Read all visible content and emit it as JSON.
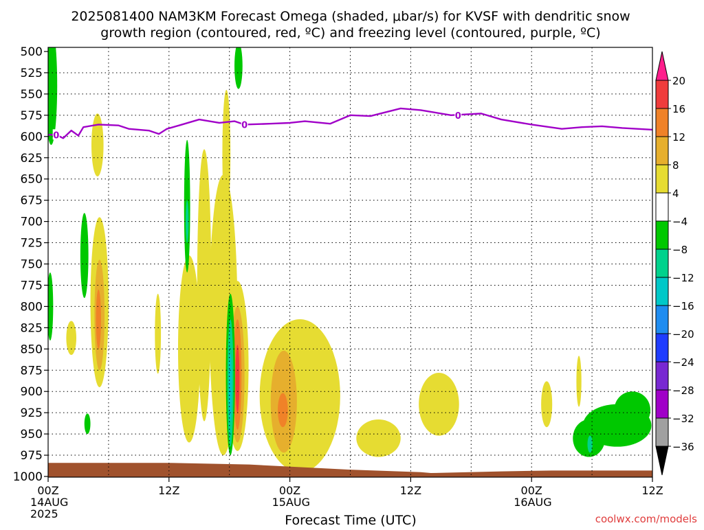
{
  "title": {
    "line1": "2025081400 NAM3KM Forecast Omega (shaded, μbar/s) for KVSF with dendritic snow",
    "line2": "growth region (contoured, red, ºC) and freezing level (contoured, purple, ºC)"
  },
  "credit": "coolwx.com/models",
  "chart_data": {
    "type": "heatmap",
    "title": "2025081400 NAM3KM Forecast Omega (shaded, μbar/s) for KVSF with dendritic snow growth region (contoured, red, ºC) and freezing level (contoured, purple, ºC)",
    "xlabel": "Forecast Time (UTC)",
    "ylabel": "",
    "x_unit": "forecast hour",
    "xlim": [
      0,
      60
    ],
    "ylim": [
      1000,
      500
    ],
    "x_ticks": [
      {
        "hour": 0,
        "line1": "00Z",
        "line2": "14AUG",
        "line3": "2025"
      },
      {
        "hour": 12,
        "line1": "12Z"
      },
      {
        "hour": 24,
        "line1": "00Z",
        "line2": "15AUG"
      },
      {
        "hour": 36,
        "line1": "12Z"
      },
      {
        "hour": 48,
        "line1": "00Z",
        "line2": "16AUG"
      },
      {
        "hour": 60,
        "line1": "12Z"
      }
    ],
    "y_ticks": [
      "500",
      "525",
      "550",
      "575",
      "600",
      "625",
      "650",
      "675",
      "700",
      "725",
      "750",
      "775",
      "800",
      "825",
      "850",
      "875",
      "900",
      "925",
      "950",
      "975",
      "1000"
    ],
    "grid": true,
    "colorbar": {
      "labels": [
        "20",
        "16",
        "12",
        "8",
        "4",
        "−4",
        "−8",
        "−12",
        "−16",
        "−20",
        "−24",
        "−28",
        "−32",
        "−36"
      ],
      "bands": [
        {
          "range": "> 20",
          "color": "#ff1e8c"
        },
        {
          "range": "16 to 20",
          "color": "#f03c3c"
        },
        {
          "range": "12 to 16",
          "color": "#f08228"
        },
        {
          "range": "8 to 12",
          "color": "#e6af2d"
        },
        {
          "range": "4 to 8",
          "color": "#e6dc32"
        },
        {
          "range": "-4 to 4",
          "color": "#ffffff"
        },
        {
          "range": "-8 to -4",
          "color": "#00c800"
        },
        {
          "range": "-12 to -8",
          "color": "#00d28c"
        },
        {
          "range": "-16 to -12",
          "color": "#00c8c8"
        },
        {
          "range": "-20 to -16",
          "color": "#1e8cf0"
        },
        {
          "range": "-24 to -20",
          "color": "#1e3cff"
        },
        {
          "range": "-28 to -24",
          "color": "#7828d2"
        },
        {
          "range": "-32 to -28",
          "color": "#a000c8"
        },
        {
          "range": "-36 to -32",
          "color": "#a0a0a0"
        },
        {
          "range": "< -36",
          "color": "#000000"
        }
      ]
    },
    "freezing_level": {
      "label": "0",
      "color": "#a000c8",
      "points": [
        [
          0,
          598
        ],
        [
          0.8,
          598
        ],
        [
          1.5,
          602
        ],
        [
          2.3,
          593
        ],
        [
          3,
          599
        ],
        [
          3.5,
          589
        ],
        [
          5,
          586
        ],
        [
          7,
          587
        ],
        [
          8,
          591
        ],
        [
          10,
          593
        ],
        [
          11,
          597
        ],
        [
          11.8,
          591
        ],
        [
          13,
          587
        ],
        [
          15,
          580
        ],
        [
          17,
          584
        ],
        [
          18.5,
          582
        ],
        [
          19.5,
          586
        ],
        [
          22,
          585
        ],
        [
          24,
          584
        ],
        [
          25.5,
          582
        ],
        [
          28,
          585
        ],
        [
          30,
          575
        ],
        [
          32,
          576
        ],
        [
          35,
          567
        ],
        [
          37,
          569
        ],
        [
          40,
          575
        ],
        [
          43,
          573
        ],
        [
          45,
          580
        ],
        [
          48,
          586
        ],
        [
          51,
          591
        ],
        [
          53,
          589
        ],
        [
          55,
          588
        ],
        [
          57,
          590
        ],
        [
          60,
          592
        ]
      ]
    },
    "omega_regions": [
      {
        "band": "4 to 8",
        "center": [
          4.9,
          610
        ],
        "half_width_h": 0.6,
        "half_height_hpa": 37
      },
      {
        "band": "4 to 8",
        "center": [
          5.1,
          795
        ],
        "half_width_h": 0.9,
        "half_height_hpa": 100
      },
      {
        "band": "8 to 12",
        "center": [
          5.1,
          810
        ],
        "half_width_h": 0.5,
        "half_height_hpa": 65
      },
      {
        "band": "12 to 16",
        "center": [
          5.0,
          815
        ],
        "half_width_h": 0.25,
        "half_height_hpa": 35
      },
      {
        "band": "4 to 8",
        "center": [
          2.3,
          837
        ],
        "half_width_h": 0.5,
        "half_height_hpa": 20
      },
      {
        "band": "4 to 8",
        "center": [
          10.9,
          832
        ],
        "half_width_h": 0.3,
        "half_height_hpa": 47
      },
      {
        "band": "4 to 8",
        "center": [
          14,
          850
        ],
        "half_width_h": 1.1,
        "half_height_hpa": 110
      },
      {
        "band": "4 to 8",
        "center": [
          15.5,
          775
        ],
        "half_width_h": 0.7,
        "half_height_hpa": 160
      },
      {
        "band": "4 to 8",
        "center": [
          17.4,
          810
        ],
        "half_width_h": 1.4,
        "half_height_hpa": 165
      },
      {
        "band": "4 to 8",
        "center": [
          18.8,
          870
        ],
        "half_width_h": 1.1,
        "half_height_hpa": 100
      },
      {
        "band": "8 to 12",
        "center": [
          18.8,
          880
        ],
        "half_width_h": 0.7,
        "half_height_hpa": 80
      },
      {
        "band": "12 to 16",
        "center": [
          18.8,
          880
        ],
        "half_width_h": 0.4,
        "half_height_hpa": 65
      },
      {
        "band": "16 to 20",
        "center": [
          18.8,
          885
        ],
        "half_width_h": 0.2,
        "half_height_hpa": 40
      },
      {
        "band": "4 to 8",
        "center": [
          17.7,
          620
        ],
        "half_width_h": 0.4,
        "half_height_hpa": 75
      },
      {
        "band": "4 to 8",
        "center": [
          25,
          905
        ],
        "half_width_h": 4.0,
        "half_height_hpa": 90
      },
      {
        "band": "8 to 12",
        "center": [
          23.4,
          912
        ],
        "half_width_h": 1.3,
        "half_height_hpa": 60
      },
      {
        "band": "12 to 16",
        "center": [
          23.3,
          922
        ],
        "half_width_h": 0.5,
        "half_height_hpa": 20
      },
      {
        "band": "4 to 8",
        "center": [
          32.8,
          955
        ],
        "half_width_h": 2.2,
        "half_height_hpa": 22
      },
      {
        "band": "4 to 8",
        "center": [
          38.8,
          915
        ],
        "half_width_h": 2.0,
        "half_height_hpa": 37
      },
      {
        "band": "4 to 8",
        "center": [
          49.5,
          915
        ],
        "half_width_h": 0.55,
        "half_height_hpa": 27
      },
      {
        "band": "4 to 8",
        "center": [
          52.7,
          888
        ],
        "half_width_h": 0.25,
        "half_height_hpa": 30
      },
      {
        "band": "-8 to -4",
        "center": [
          0.3,
          540
        ],
        "half_width_h": 0.6,
        "half_height_hpa": 70
      },
      {
        "band": "-8 to -4",
        "center": [
          0.2,
          800
        ],
        "half_width_h": 0.3,
        "half_height_hpa": 40
      },
      {
        "band": "-8 to -4",
        "center": [
          3.6,
          740
        ],
        "half_width_h": 0.4,
        "half_height_hpa": 50
      },
      {
        "band": "-8 to -4",
        "center": [
          3.9,
          938
        ],
        "half_width_h": 0.3,
        "half_height_hpa": 12
      },
      {
        "band": "-8 to -4",
        "center": [
          13.8,
          682
        ],
        "half_width_h": 0.3,
        "half_height_hpa": 78
      },
      {
        "band": "-12 to -8",
        "center": [
          13.8,
          700
        ],
        "half_width_h": 0.15,
        "half_height_hpa": 25
      },
      {
        "band": "-8 to -4",
        "center": [
          18.9,
          517
        ],
        "half_width_h": 0.4,
        "half_height_hpa": 27
      },
      {
        "band": "-8 to -4",
        "center": [
          18.1,
          880
        ],
        "half_width_h": 0.45,
        "half_height_hpa": 95
      },
      {
        "band": "-12 to -8",
        "center": [
          18.1,
          890
        ],
        "half_width_h": 0.3,
        "half_height_hpa": 75
      },
      {
        "band": "-16 to -12",
        "center": [
          18.1,
          895
        ],
        "half_width_h": 0.15,
        "half_height_hpa": 40
      },
      {
        "band": "-8 to -4",
        "center": [
          53.7,
          955
        ],
        "half_width_h": 1.6,
        "half_height_hpa": 22
      },
      {
        "band": "-8 to -4",
        "center": [
          56.5,
          940
        ],
        "half_width_h": 3.4,
        "half_height_hpa": 25
      },
      {
        "band": "-8 to -4",
        "center": [
          58,
          922
        ],
        "half_width_h": 1.8,
        "half_height_hpa": 22
      },
      {
        "band": "-12 to -8",
        "center": [
          53.8,
          962
        ],
        "half_width_h": 0.25,
        "half_height_hpa": 10
      }
    ],
    "terrain": {
      "color": "#a0522d",
      "surface_pressure": [
        [
          0,
          984
        ],
        [
          12,
          984
        ],
        [
          20,
          986
        ],
        [
          30,
          992
        ],
        [
          37,
          995
        ],
        [
          38,
          996
        ],
        [
          45,
          994
        ],
        [
          50,
          993
        ],
        [
          60,
          993
        ]
      ]
    }
  }
}
